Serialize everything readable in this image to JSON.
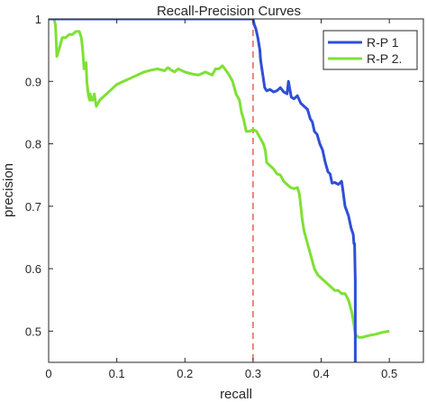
{
  "chart_data": {
    "type": "line",
    "title": "Recall-Precision Curves",
    "xlabel": "recall",
    "ylabel": "precision",
    "xlim": [
      0,
      0.55
    ],
    "ylim": [
      0.45,
      1.0
    ],
    "xticks": [
      0,
      0.1,
      0.2,
      0.3,
      0.4,
      0.5
    ],
    "xtick_labels": [
      "0",
      "0.1",
      "0.2",
      "0.3",
      "0.4",
      "0.5"
    ],
    "yticks": [
      0.5,
      0.6,
      0.7,
      0.8,
      0.9,
      1.0
    ],
    "ytick_labels": [
      "0.5",
      "0.6",
      "0.7",
      "0.8",
      "0.9",
      "1"
    ],
    "grid": false,
    "legend_position": "top-right",
    "reference_line": {
      "x": 0.3,
      "color": "#e8473f",
      "style": "dashed"
    },
    "series": [
      {
        "name": "R-P 1",
        "color": "#2f4fd6",
        "x": [
          0,
          0.3,
          0.302,
          0.304,
          0.307,
          0.31,
          0.311,
          0.313,
          0.315,
          0.317,
          0.32,
          0.325,
          0.33,
          0.335,
          0.34,
          0.345,
          0.35,
          0.352,
          0.356,
          0.36,
          0.365,
          0.37,
          0.375,
          0.38,
          0.384,
          0.387,
          0.39,
          0.394,
          0.398,
          0.402,
          0.406,
          0.41,
          0.413,
          0.416,
          0.42,
          0.425,
          0.43,
          0.432,
          0.435,
          0.44,
          0.444,
          0.447,
          0.448,
          0.449,
          0.45,
          0.45
        ],
        "values": [
          1.0,
          1.0,
          0.99,
          0.985,
          0.97,
          0.95,
          0.935,
          0.92,
          0.905,
          0.89,
          0.885,
          0.887,
          0.883,
          0.885,
          0.89,
          0.883,
          0.88,
          0.9,
          0.875,
          0.872,
          0.877,
          0.865,
          0.86,
          0.855,
          0.84,
          0.835,
          0.82,
          0.815,
          0.8,
          0.79,
          0.77,
          0.755,
          0.752,
          0.737,
          0.738,
          0.735,
          0.74,
          0.725,
          0.7,
          0.685,
          0.665,
          0.655,
          0.64,
          0.64,
          0.58,
          0.45
        ]
      },
      {
        "name": "R-P 2.",
        "color": "#7fe034",
        "x": [
          0,
          0.008,
          0.01,
          0.012,
          0.015,
          0.02,
          0.025,
          0.03,
          0.035,
          0.04,
          0.045,
          0.048,
          0.05,
          0.052,
          0.055,
          0.056,
          0.058,
          0.06,
          0.061,
          0.063,
          0.065,
          0.067,
          0.07,
          0.075,
          0.08,
          0.09,
          0.1,
          0.11,
          0.12,
          0.13,
          0.14,
          0.15,
          0.16,
          0.17,
          0.175,
          0.18,
          0.185,
          0.19,
          0.2,
          0.21,
          0.22,
          0.23,
          0.24,
          0.245,
          0.25,
          0.255,
          0.26,
          0.265,
          0.27,
          0.275,
          0.28,
          0.283,
          0.286,
          0.29,
          0.295,
          0.3,
          0.305,
          0.31,
          0.315,
          0.318,
          0.32,
          0.325,
          0.33,
          0.335,
          0.34,
          0.345,
          0.35,
          0.355,
          0.36,
          0.365,
          0.368,
          0.37,
          0.372,
          0.375,
          0.38,
          0.385,
          0.39,
          0.395,
          0.4,
          0.405,
          0.41,
          0.415,
          0.42,
          0.425,
          0.43,
          0.435,
          0.44,
          0.445,
          0.448,
          0.45,
          0.455,
          0.46,
          0.47,
          0.48,
          0.49,
          0.5
        ],
        "values": [
          1.0,
          1.0,
          0.99,
          0.94,
          0.95,
          0.97,
          0.97,
          0.975,
          0.975,
          0.98,
          0.98,
          0.97,
          0.95,
          0.92,
          0.93,
          0.9,
          0.88,
          0.87,
          0.88,
          0.87,
          0.87,
          0.88,
          0.86,
          0.87,
          0.875,
          0.885,
          0.895,
          0.9,
          0.905,
          0.91,
          0.915,
          0.918,
          0.92,
          0.917,
          0.922,
          0.918,
          0.915,
          0.92,
          0.915,
          0.912,
          0.91,
          0.915,
          0.91,
          0.92,
          0.92,
          0.925,
          0.918,
          0.91,
          0.9,
          0.88,
          0.87,
          0.85,
          0.84,
          0.82,
          0.82,
          0.823,
          0.82,
          0.81,
          0.8,
          0.79,
          0.77,
          0.765,
          0.76,
          0.752,
          0.75,
          0.74,
          0.735,
          0.73,
          0.728,
          0.73,
          0.72,
          0.7,
          0.68,
          0.66,
          0.64,
          0.62,
          0.6,
          0.59,
          0.585,
          0.58,
          0.575,
          0.57,
          0.565,
          0.565,
          0.56,
          0.56,
          0.55,
          0.53,
          0.51,
          0.495,
          0.49,
          0.49,
          0.493,
          0.495,
          0.498,
          0.5
        ]
      }
    ]
  }
}
